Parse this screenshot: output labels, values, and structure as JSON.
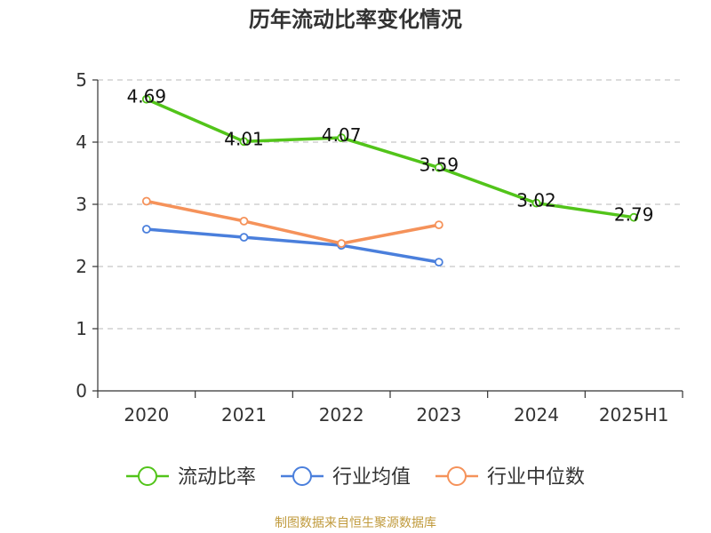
{
  "chart_data": {
    "type": "line",
    "title": "历年流动比率变化情况",
    "categories": [
      "2020",
      "2021",
      "2022",
      "2023",
      "2024",
      "2025H1"
    ],
    "ylim": [
      0,
      5
    ],
    "yticks": [
      "0",
      "1",
      "2",
      "3",
      "4",
      "5"
    ],
    "grid": true,
    "legend_position": "bottom",
    "series": [
      {
        "name": "流动比率",
        "color": "#52c41a",
        "values": [
          4.69,
          4.01,
          4.07,
          3.59,
          3.02,
          2.79
        ],
        "labels": [
          "4.69",
          "4.01",
          "4.07",
          "3.59",
          "3.02",
          "2.79"
        ]
      },
      {
        "name": "行业均值",
        "color": "#4a7fdc",
        "values": [
          2.6,
          2.47,
          2.34,
          2.07,
          null,
          null
        ]
      },
      {
        "name": "行业中位数",
        "color": "#f5925a",
        "values": [
          3.05,
          2.73,
          2.37,
          2.67,
          null,
          null
        ]
      }
    ]
  },
  "source": "制图数据来自恒生聚源数据库"
}
